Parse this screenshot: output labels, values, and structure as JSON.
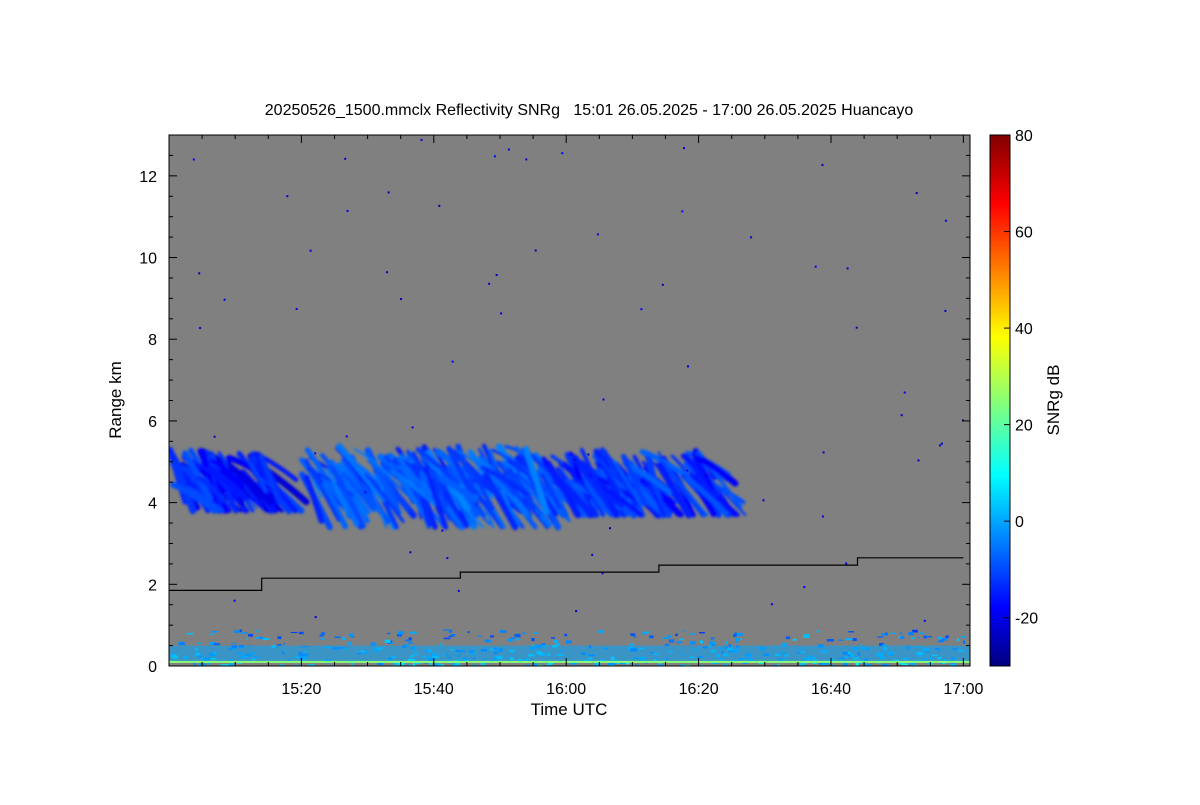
{
  "chart_data": {
    "type": "heatmap",
    "title": "20250526_1500.mmclx Reflectivity SNRg   15:01 26.05.2025 - 17:00 26.05.2025 Huancayo",
    "xlabel": "Time UTC",
    "ylabel": "Range km",
    "colorbar_label": "SNRg dB",
    "xlim": [
      "15:00",
      "17:01"
    ],
    "ylim": [
      0,
      13
    ],
    "x_ticks": [
      "15:20",
      "15:40",
      "16:00",
      "16:20",
      "16:40",
      "17:00"
    ],
    "y_ticks": [
      0,
      2,
      4,
      6,
      8,
      10,
      12
    ],
    "colorbar_range": [
      -30,
      80
    ],
    "colorbar_ticks": [
      -20,
      0,
      20,
      40,
      60,
      80
    ],
    "colormap": "jet",
    "background_color": "#808080",
    "cloud_layers": [
      {
        "start": "15:00",
        "end": "15:14",
        "base_km": 3.8,
        "top_km": 5.3,
        "mean_snr_db": -18
      },
      {
        "start": "15:20",
        "end": "15:56",
        "base_km": 3.4,
        "top_km": 5.4,
        "mean_snr_db": -12
      },
      {
        "start": "15:56",
        "end": "16:21",
        "base_km": 3.7,
        "top_km": 5.3,
        "mean_snr_db": -15
      }
    ],
    "boundary_layer": {
      "start": "15:00",
      "end": "17:00",
      "top_km": 0.9,
      "mean_snr_db": -5
    },
    "surface_band": {
      "height_km": 0.1,
      "snr_db": 25
    },
    "step_line": {
      "color": "#000000",
      "points": [
        {
          "t": "15:00",
          "km": 1.85
        },
        {
          "t": "15:14",
          "km": 1.85
        },
        {
          "t": "15:14",
          "km": 2.15
        },
        {
          "t": "15:44",
          "km": 2.15
        },
        {
          "t": "15:44",
          "km": 2.3
        },
        {
          "t": "16:14",
          "km": 2.3
        },
        {
          "t": "16:14",
          "km": 2.47
        },
        {
          "t": "16:44",
          "km": 2.47
        },
        {
          "t": "16:44",
          "km": 2.65
        },
        {
          "t": "17:00",
          "km": 2.65
        }
      ]
    }
  }
}
